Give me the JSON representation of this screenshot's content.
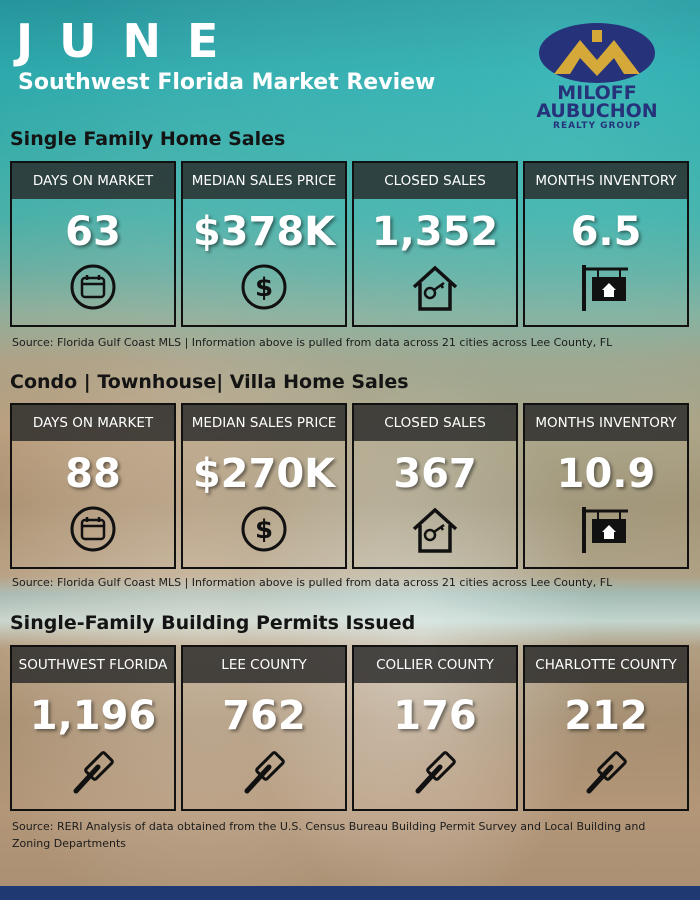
{
  "header": {
    "month": "JUNE",
    "subtitle": "Southwest Florida Market Review"
  },
  "logo": {
    "line1": "MILOFF",
    "line2": "AUBUCHON",
    "line3": "REALTY GROUP",
    "colors": {
      "navy": "#26337a",
      "gold": "#d4a93a"
    }
  },
  "single_family": {
    "title": "Single Family Home Sales",
    "cards": [
      {
        "label": "DAYS ON MARKET",
        "value": "63",
        "icon": "calendar-icon"
      },
      {
        "label": "MEDIAN SALES PRICE",
        "value": "$378K",
        "icon": "dollar-icon"
      },
      {
        "label": "CLOSED SALES",
        "value": "1,352",
        "icon": "house-key-icon"
      },
      {
        "label": "MONTHS INVENTORY",
        "value": "6.5",
        "icon": "hanging-sign-icon"
      }
    ],
    "source": "Source: Florida Gulf Coast MLS | Information above is pulled from data across 21 cities across Lee County, FL"
  },
  "condo": {
    "title": "Condo | Townhouse| Villa Home Sales",
    "cards": [
      {
        "label": "DAYS ON MARKET",
        "value": "88",
        "icon": "calendar-icon"
      },
      {
        "label": "MEDIAN SALES PRICE",
        "value": "$270K",
        "icon": "dollar-icon"
      },
      {
        "label": "CLOSED SALES",
        "value": "367",
        "icon": "house-key-icon"
      },
      {
        "label": "MONTHS INVENTORY",
        "value": "10.9",
        "icon": "hanging-sign-icon"
      }
    ],
    "source": "Source: Florida Gulf Coast MLS | Information above is pulled from data across 21 cities across Lee County, FL"
  },
  "permits": {
    "title": "Single-Family Building Permits Issued",
    "cards": [
      {
        "label": "SOUTHWEST FLORIDA",
        "value": "1,196",
        "icon": "hammer-icon"
      },
      {
        "label": "LEE COUNTY",
        "value": "762",
        "icon": "hammer-icon"
      },
      {
        "label": "COLLIER COUNTY",
        "value": "176",
        "icon": "hammer-icon"
      },
      {
        "label": "CHARLOTTE COUNTY",
        "value": "212",
        "icon": "hammer-icon"
      }
    ],
    "source_line1": "Source: RERI Analysis of data obtained from the U.S. Census Bureau Building Permit Survey and Local Building and",
    "source_line2": "Zoning Departments"
  },
  "theme": {
    "card_header_bg": "#282828",
    "footer_bar": "#1f3a73"
  }
}
